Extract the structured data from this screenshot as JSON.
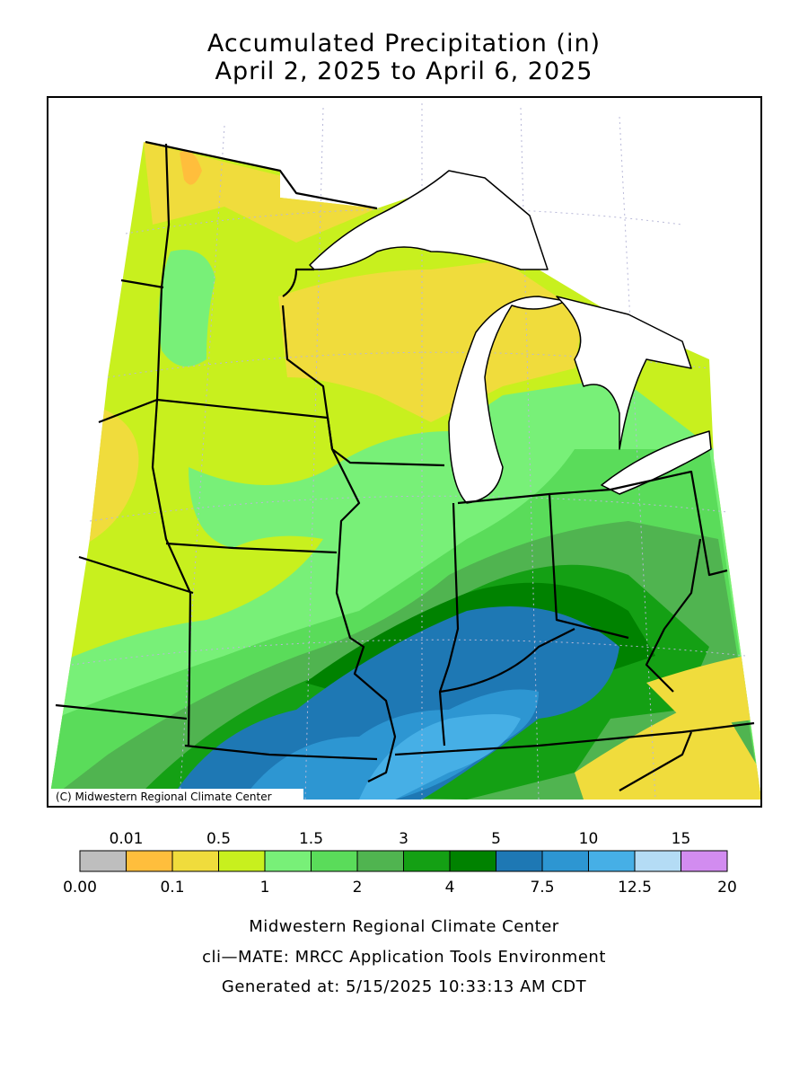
{
  "header": {
    "title": "Accumulated Precipitation (in)",
    "subtitle": "April 2, 2025 to April 6, 2025"
  },
  "map": {
    "credit": "(C) Midwestern Regional Climate Center"
  },
  "legend": {
    "boundaries": [
      {
        "value": 0,
        "label": "0.00"
      },
      0.01,
      0.1,
      0.5,
      1,
      1.5,
      2,
      3,
      4,
      5,
      7.5,
      10,
      12.5,
      15,
      20
    ],
    "colors": [
      "#bebebe",
      "#ffbe3c",
      "#f0dc3c",
      "#c8f01e",
      "#78f078",
      "#5adc5a",
      "#50b450",
      "#14a014",
      "#008200",
      "#1e78b4",
      "#2d96d2",
      "#46afe6",
      "#b4dcf5",
      "#d28cf0"
    ]
  },
  "footer": {
    "lines": [
      "Midwestern Regional Climate Center",
      "cli—MATE: MRCC Application Tools Environment",
      "Generated at: 5/15/2025 10:33:13 AM CDT"
    ]
  }
}
